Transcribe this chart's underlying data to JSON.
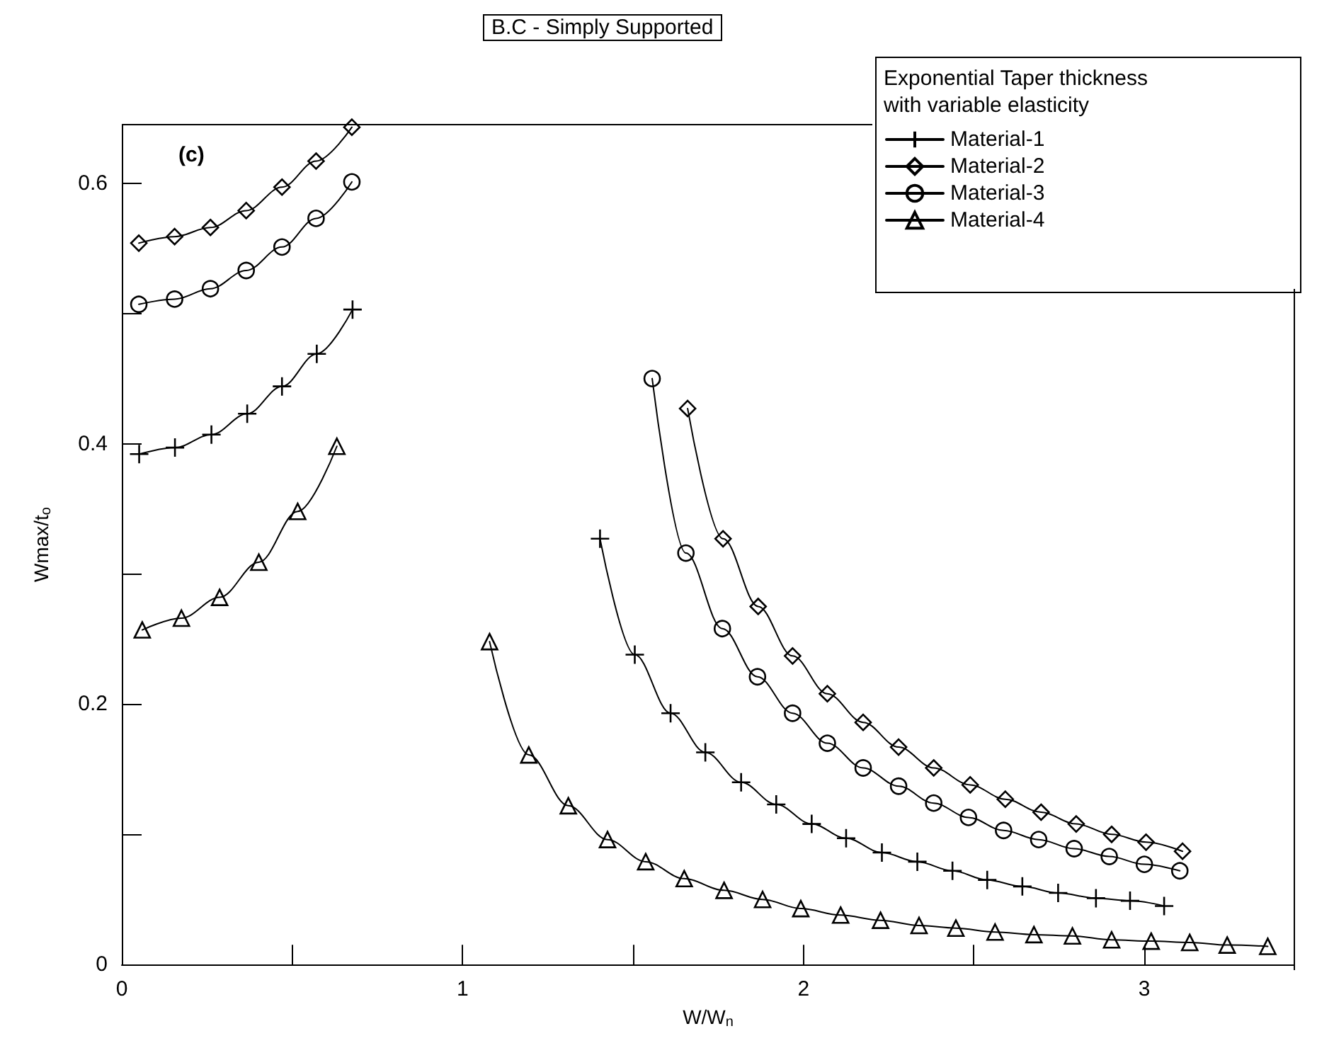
{
  "chart_data": {
    "type": "line",
    "title": "B.C - Simply Supported",
    "xlabel": "W/W$_{n}$",
    "ylabel": "Wmax/t$_{o}$",
    "legend_title": "Exponential Taper thickness\nwith variable elasticity",
    "legend": "top right",
    "line_style": "solid",
    "annotations": [
      "(c)"
    ],
    "xlim": [
      0,
      3.44
    ],
    "ylim": [
      0,
      0.645
    ],
    "xticks": [
      0,
      {
        "value": 0.5,
        "label": null
      },
      1,
      {
        "value": 1.5,
        "label": null
      },
      2,
      {
        "value": 2.5,
        "label": null
      },
      3
    ],
    "yticks": [
      0,
      {
        "value": 0.1,
        "label": null
      },
      0.2,
      {
        "value": 0.3,
        "label": null
      },
      0.4,
      {
        "value": 0.5,
        "label": null
      },
      0.6
    ],
    "series": [
      {
        "name": "Material-1",
        "color": "#000000",
        "marker": "cross",
        "x": [
          0.051,
          0.156,
          0.263,
          0.368,
          0.47,
          0.572,
          0.677,
          null,
          1.403,
          1.505,
          1.61,
          1.712,
          1.817,
          1.92,
          2.024,
          2.125,
          2.23,
          2.334,
          2.437,
          2.539,
          2.642,
          2.747,
          2.858,
          2.958,
          3.058
        ],
        "values": [
          0.392,
          0.397,
          0.407,
          0.423,
          0.444,
          0.469,
          0.503,
          null,
          0.327,
          0.238,
          0.193,
          0.163,
          0.14,
          0.123,
          0.108,
          0.097,
          0.086,
          0.079,
          0.072,
          0.065,
          0.06,
          0.055,
          0.051,
          0.049,
          0.045
        ]
      },
      {
        "name": "Material-2",
        "color": "#000000",
        "marker": "diamond",
        "x": [
          0.05,
          0.155,
          0.26,
          0.365,
          0.47,
          0.57,
          0.675,
          null,
          1.66,
          1.764,
          1.867,
          1.968,
          2.07,
          2.175,
          2.279,
          2.382,
          2.489,
          2.592,
          2.697,
          2.8,
          2.904,
          3.005,
          3.112
        ],
        "values": [
          0.554,
          0.559,
          0.566,
          0.579,
          0.597,
          0.617,
          0.643,
          null,
          0.427,
          0.327,
          0.275,
          0.237,
          0.208,
          0.186,
          0.167,
          0.151,
          0.138,
          0.127,
          0.117,
          0.108,
          0.1,
          0.094,
          0.087
        ]
      },
      {
        "name": "Material-3",
        "color": "#000000",
        "marker": "circle",
        "x": [
          0.05,
          0.155,
          0.26,
          0.365,
          0.47,
          0.57,
          0.675,
          null,
          1.556,
          1.655,
          1.762,
          1.865,
          1.968,
          2.07,
          2.175,
          2.279,
          2.382,
          2.484,
          2.587,
          2.69,
          2.794,
          2.897,
          3.0,
          3.104
        ],
        "values": [
          0.507,
          0.511,
          0.519,
          0.533,
          0.551,
          0.573,
          0.601,
          null,
          0.45,
          0.316,
          0.258,
          0.221,
          0.193,
          0.17,
          0.151,
          0.137,
          0.124,
          0.113,
          0.103,
          0.096,
          0.089,
          0.083,
          0.077,
          0.072
        ]
      },
      {
        "name": "Material-4",
        "color": "#000000",
        "marker": "triangle",
        "x": [
          0.06,
          0.175,
          0.287,
          0.402,
          0.516,
          0.631,
          null,
          1.079,
          1.194,
          1.31,
          1.425,
          1.537,
          1.65,
          1.767,
          1.88,
          1.992,
          2.109,
          2.226,
          2.339,
          2.447,
          2.562,
          2.676,
          2.789,
          2.904,
          3.02,
          3.133,
          3.243,
          3.362
        ],
        "values": [
          0.257,
          0.266,
          0.282,
          0.309,
          0.348,
          0.398,
          null,
          0.248,
          0.161,
          0.122,
          0.096,
          0.079,
          0.066,
          0.057,
          0.05,
          0.043,
          0.038,
          0.034,
          0.03,
          0.028,
          0.025,
          0.023,
          0.022,
          0.019,
          0.018,
          0.017,
          0.015,
          0.014
        ]
      }
    ]
  }
}
